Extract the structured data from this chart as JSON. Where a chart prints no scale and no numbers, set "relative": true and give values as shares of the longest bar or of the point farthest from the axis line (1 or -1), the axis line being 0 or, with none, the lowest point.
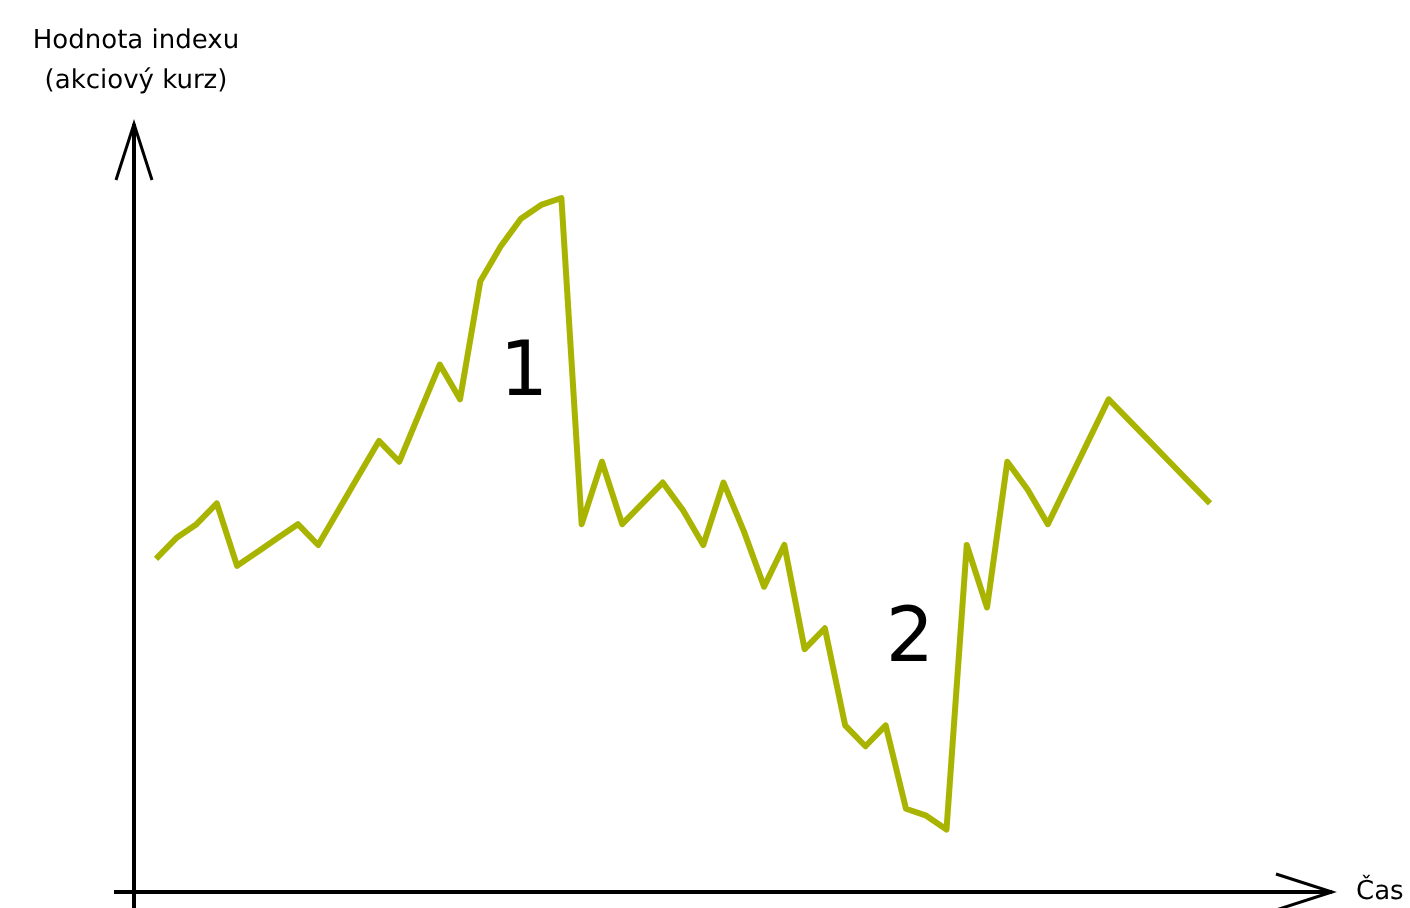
{
  "chart_data": {
    "type": "line",
    "relative": true,
    "ylabel": "Hodnota indexu\n(akciový kurz)",
    "categories": [
      null,
      null,
      null,
      null,
      null,
      null,
      null,
      null,
      null,
      null,
      null,
      null,
      null,
      null,
      null,
      null,
      null,
      null,
      null,
      null,
      null,
      null,
      null,
      null,
      null,
      null,
      null,
      null,
      null,
      null,
      null,
      null,
      null,
      null,
      null,
      null,
      null,
      null,
      null,
      null,
      null,
      null,
      null,
      null,
      null,
      null,
      null,
      null,
      null,
      null,
      null,
      null,
      null
    ],
    "series": [
      {
        "color": "#a8b400",
        "values": [
          0.48,
          0.51,
          0.53,
          0.56,
          0.47,
          0.49,
          0.51,
          0.53,
          0.5,
          0.55,
          0.6,
          0.65,
          0.62,
          0.69,
          0.76,
          0.71,
          0.88,
          0.93,
          0.97,
          0.99,
          1,
          0.53,
          0.62,
          0.53,
          0.56,
          0.59,
          0.55,
          0.5,
          0.59,
          0.52,
          0.44,
          0.5,
          0.35,
          0.38,
          0.24,
          0.21,
          0.24,
          0.12,
          0.11,
          0.09,
          0.5,
          0.41,
          0.62,
          0.58,
          0.53,
          0.59,
          0.65,
          0.71,
          0.68,
          0.65,
          0.62,
          0.59,
          0.56
        ]
      }
    ],
    "annotations": [
      "1",
      "2",
      "Čas"
    ],
    "marker": "none",
    "line_style": "solid"
  }
}
